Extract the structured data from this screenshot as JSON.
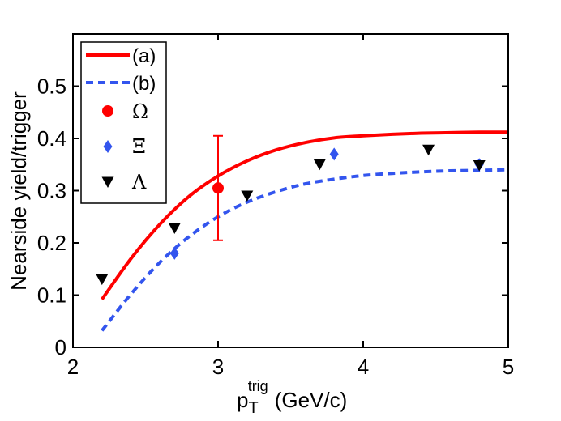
{
  "chart_data": {
    "type": "scatter",
    "title": "",
    "xlabel": {
      "base": "p",
      "sub": "T",
      "sup": "trig",
      "unit": "(GeV/c)"
    },
    "ylabel": "Nearside yield/trigger",
    "xlim": [
      2,
      5
    ],
    "ylim": [
      0,
      0.6
    ],
    "xticks": [
      2,
      3,
      4,
      5
    ],
    "yticks": [
      0,
      0.1,
      0.2,
      0.3,
      0.4,
      0.5
    ],
    "ytick_labels": [
      "0",
      "0.1",
      "0.2",
      "0.3",
      "0.4",
      "0.5"
    ],
    "grid": false,
    "legend_position": "top-left",
    "curves": [
      {
        "name": "(a)",
        "style": "solid",
        "color": "#ff0000",
        "x": [
          2.2,
          2.4,
          2.6,
          2.8,
          3.0,
          3.2,
          3.4,
          3.6,
          3.8,
          4.0,
          4.2,
          4.4,
          4.6,
          4.8,
          5.0
        ],
        "y": [
          0.092,
          0.17,
          0.236,
          0.289,
          0.328,
          0.357,
          0.378,
          0.392,
          0.401,
          0.405,
          0.408,
          0.41,
          0.411,
          0.412,
          0.412
        ]
      },
      {
        "name": "(b)",
        "style": "dashed",
        "color": "#3355ee",
        "x": [
          2.2,
          2.4,
          2.6,
          2.8,
          3.0,
          3.2,
          3.4,
          3.6,
          3.8,
          4.0,
          4.2,
          4.4,
          4.6,
          4.8,
          5.0
        ],
        "y": [
          0.032,
          0.102,
          0.163,
          0.212,
          0.25,
          0.278,
          0.298,
          0.313,
          0.322,
          0.329,
          0.333,
          0.336,
          0.338,
          0.339,
          0.34
        ]
      }
    ],
    "points": [
      {
        "name": "Ω",
        "marker": "circle",
        "color": "#ff0000",
        "x": [
          3.0
        ],
        "y": [
          0.305
        ],
        "yerr": [
          0.1
        ]
      },
      {
        "name": "Ξ",
        "marker": "diamond",
        "color": "#3355ee",
        "x": [
          2.7,
          3.8,
          4.8
        ],
        "y": [
          0.18,
          0.37,
          0.35
        ]
      },
      {
        "name": "Λ",
        "marker": "triangle-down",
        "color": "#000000",
        "x": [
          2.2,
          2.7,
          3.2,
          3.7,
          4.45,
          4.8
        ],
        "y": [
          0.13,
          0.228,
          0.29,
          0.35,
          0.378,
          0.348
        ]
      }
    ]
  }
}
